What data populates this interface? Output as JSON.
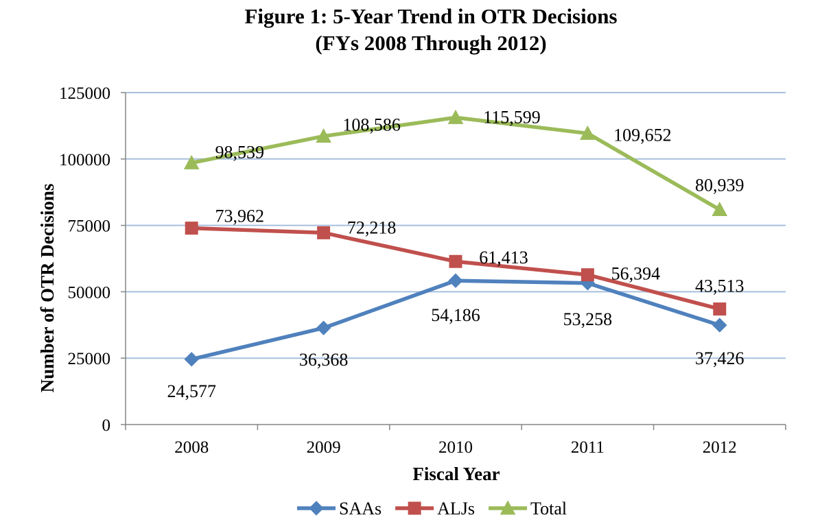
{
  "chart_data": {
    "type": "line",
    "title_line1": "Figure 1: 5-Year Trend in OTR Decisions",
    "title_line2": "(FYs 2008 Through 2012)",
    "xlabel": "Fiscal Year",
    "ylabel": "Number of OTR Decisions",
    "categories": [
      "2008",
      "2009",
      "2010",
      "2011",
      "2012"
    ],
    "y_ticks": [
      0,
      25000,
      50000,
      75000,
      100000,
      125000
    ],
    "y_tick_labels": [
      "0",
      "25000",
      "50000",
      "75000",
      "100000",
      "125000"
    ],
    "ylim": [
      0,
      125000
    ],
    "grid": true,
    "legend_position": "bottom",
    "series": [
      {
        "name": "SAAs",
        "color": "#4f81bd",
        "marker": "diamond",
        "values": [
          24577,
          36368,
          54186,
          53258,
          37426
        ],
        "labels": [
          "24,577",
          "36,368",
          "54,186",
          "53,258",
          "37,426"
        ]
      },
      {
        "name": "ALJs",
        "color": "#c0504d",
        "marker": "square",
        "values": [
          73962,
          72218,
          61413,
          56394,
          43513
        ],
        "labels": [
          "73,962",
          "72,218",
          "61,413",
          "56,394",
          "43,513"
        ]
      },
      {
        "name": "Total",
        "color": "#9bbb59",
        "marker": "triangle",
        "values": [
          98539,
          108586,
          115599,
          109652,
          80939
        ],
        "labels": [
          "98,539",
          "108,586",
          "115,599",
          "109,652",
          "80,939"
        ]
      }
    ]
  },
  "style": {
    "gridline_color": "#a7bfdd",
    "axis_color": "#868686"
  }
}
